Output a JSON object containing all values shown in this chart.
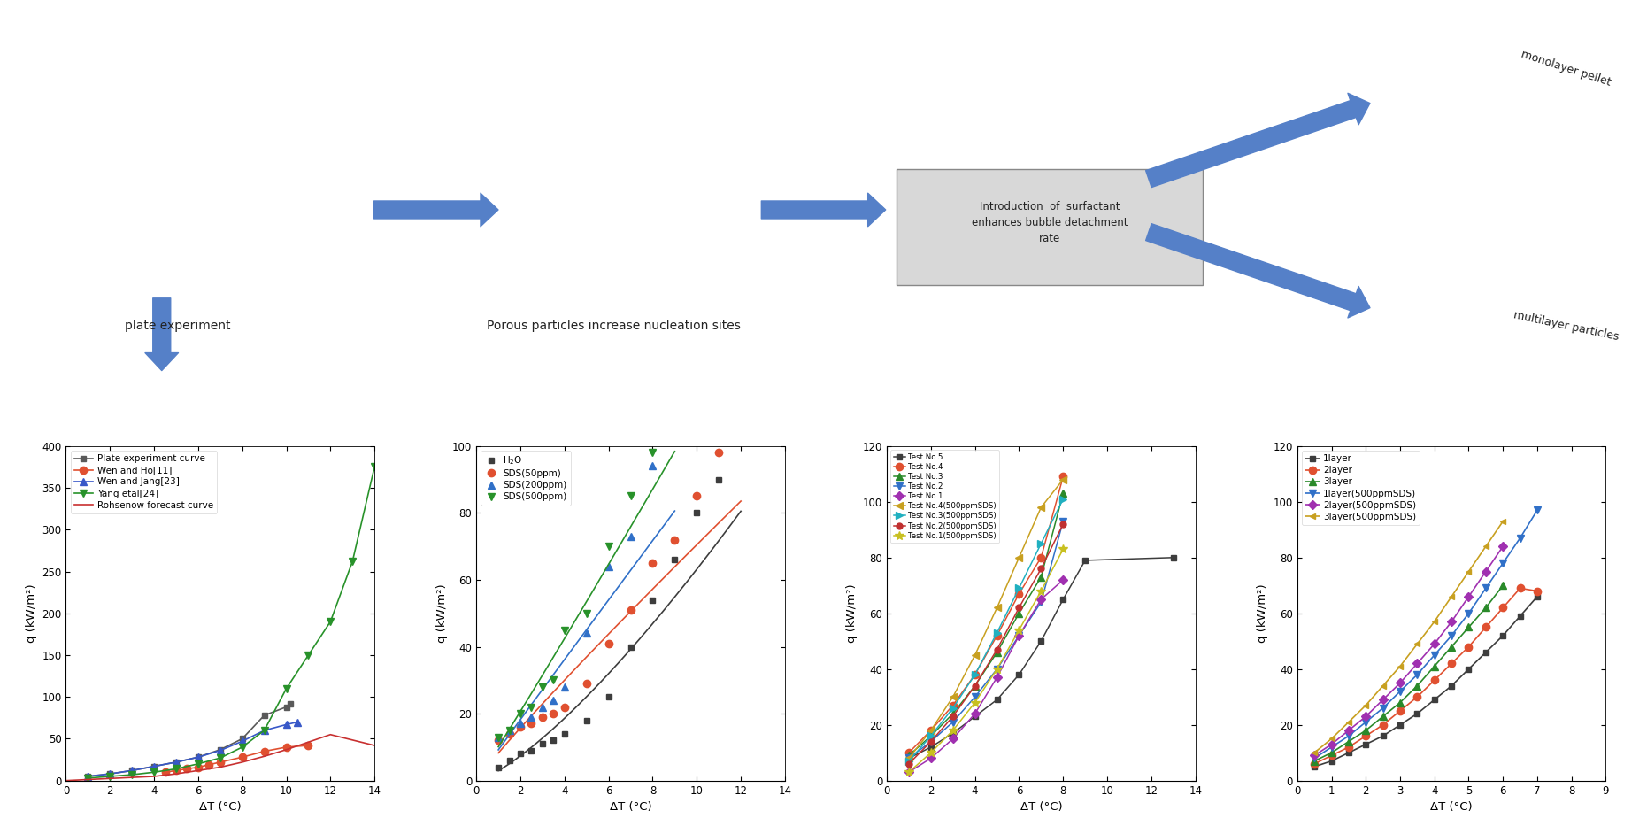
{
  "chart1": {
    "xlabel": "ΔT (°C)",
    "ylabel": "q (kW/m²)",
    "xlim": [
      0,
      14
    ],
    "ylim": [
      0,
      400
    ],
    "xticks": [
      0,
      2,
      4,
      6,
      8,
      10,
      12,
      14
    ],
    "yticks": [
      0,
      50,
      100,
      150,
      200,
      250,
      300,
      350,
      400
    ],
    "series": [
      {
        "label": "Plate experiment curve",
        "color": "#5a5a5a",
        "marker": "s",
        "ms": 5,
        "x": [
          1,
          2,
          3,
          4,
          5,
          6,
          7,
          8,
          9,
          10,
          10.2
        ],
        "y": [
          5,
          8,
          12,
          17,
          22,
          28,
          37,
          50,
          78,
          88,
          92
        ]
      },
      {
        "label": "Wen and Ho[11]",
        "color": "#e05030",
        "marker": "o",
        "ms": 6,
        "x": [
          4.5,
          5,
          5.5,
          6,
          6.5,
          7,
          8,
          9,
          10,
          11
        ],
        "y": [
          10,
          12,
          14,
          16,
          19,
          22,
          28,
          35,
          40,
          42
        ]
      },
      {
        "label": "Wen and Jang[23]",
        "color": "#3858c8",
        "marker": "^",
        "ms": 6,
        "x": [
          1,
          2,
          3,
          4,
          5,
          6,
          7,
          8,
          9,
          10,
          10.5
        ],
        "y": [
          5,
          8,
          12,
          17,
          22,
          28,
          36,
          47,
          60,
          67,
          70
        ]
      },
      {
        "label": "Yang etal[24]",
        "color": "#28922a",
        "marker": "v",
        "ms": 6,
        "x": [
          1,
          2,
          3,
          4,
          5,
          6,
          7,
          8,
          9,
          10,
          11,
          12,
          13,
          14
        ],
        "y": [
          3,
          5,
          7,
          10,
          14,
          20,
          27,
          40,
          60,
          110,
          150,
          190,
          262,
          375
        ]
      },
      {
        "label": "Rohsenow forecast curve",
        "color": "#c83030",
        "marker": null,
        "ms": 0,
        "x": [
          0,
          4,
          5,
          6,
          7,
          8,
          9,
          10,
          11,
          12,
          14
        ],
        "y": [
          0,
          5,
          8,
          12,
          16,
          22,
          29,
          37,
          46,
          55,
          42
        ]
      }
    ]
  },
  "chart2": {
    "xlabel": "ΔT (°C)",
    "ylabel": "q (kW/m²)",
    "xlim": [
      0,
      14
    ],
    "ylim": [
      0,
      100
    ],
    "xticks": [
      0,
      2,
      4,
      6,
      8,
      10,
      12,
      14
    ],
    "yticks": [
      0,
      20,
      40,
      60,
      80,
      100
    ],
    "series": [
      {
        "label": "H$_2$O",
        "color": "#3d3d3d",
        "marker": "s",
        "ms": 5,
        "x": [
          1,
          1.5,
          2,
          2.5,
          3,
          3.5,
          4,
          5,
          6,
          7,
          8,
          9,
          10,
          11,
          12,
          13,
          14
        ],
        "y": [
          4,
          6,
          8,
          9,
          11,
          12,
          14,
          18,
          25,
          40,
          54,
          66,
          80,
          90,
          null,
          null,
          null
        ]
      },
      {
        "label": "SDS(50ppm)",
        "color": "#e05030",
        "marker": "o",
        "ms": 6,
        "x": [
          1,
          1.5,
          2,
          2.5,
          3,
          3.5,
          4,
          5,
          6,
          7,
          8,
          9,
          10,
          11,
          12
        ],
        "y": [
          12,
          14,
          16,
          17,
          19,
          20,
          22,
          29,
          41,
          51,
          65,
          72,
          85,
          98,
          null
        ]
      },
      {
        "label": "SDS(200ppm)",
        "color": "#3070c8",
        "marker": "^",
        "ms": 6,
        "x": [
          1,
          1.5,
          2,
          2.5,
          3,
          3.5,
          4,
          5,
          6,
          7,
          8,
          9,
          10
        ],
        "y": [
          13,
          15,
          17,
          19,
          22,
          24,
          28,
          44,
          64,
          73,
          94,
          null,
          null
        ]
      },
      {
        "label": "SDS(500ppm)",
        "color": "#28922a",
        "marker": "v",
        "ms": 6,
        "x": [
          1,
          1.5,
          2,
          2.5,
          3,
          3.5,
          4,
          5,
          6,
          7,
          8,
          9
        ],
        "y": [
          13,
          15,
          20,
          22,
          28,
          30,
          45,
          50,
          70,
          85,
          98,
          null
        ]
      }
    ]
  },
  "chart3": {
    "xlabel": "ΔT (°C)",
    "ylabel": "q (kW/m²)",
    "xlim": [
      0,
      14
    ],
    "ylim": [
      0,
      120
    ],
    "xticks": [
      0,
      2,
      4,
      6,
      8,
      10,
      12,
      14
    ],
    "yticks": [
      0,
      20,
      40,
      60,
      80,
      100,
      120
    ],
    "series": [
      {
        "label": "Test No.5",
        "color": "#3d3d3d",
        "marker": "s",
        "ms": 5,
        "x": [
          1,
          2,
          3,
          4,
          5,
          6,
          7,
          8,
          9,
          10,
          11,
          12,
          13
        ],
        "y": [
          8,
          12,
          17,
          23,
          29,
          38,
          50,
          65,
          79,
          null,
          null,
          null,
          80
        ]
      },
      {
        "label": "Test No.4",
        "color": "#e05030",
        "marker": "o",
        "ms": 6,
        "x": [
          1,
          2,
          3,
          4,
          5,
          6,
          7,
          8
        ],
        "y": [
          10,
          18,
          27,
          38,
          52,
          67,
          80,
          109
        ]
      },
      {
        "label": "Test No.3",
        "color": "#2a8a2a",
        "marker": "^",
        "ms": 6,
        "x": [
          1,
          2,
          3,
          4,
          5,
          6,
          7,
          8
        ],
        "y": [
          9,
          16,
          24,
          34,
          46,
          60,
          73,
          103
        ]
      },
      {
        "label": "Test No.2",
        "color": "#3070c8",
        "marker": "v",
        "ms": 6,
        "x": [
          1,
          2,
          3,
          4,
          5,
          6,
          7,
          8
        ],
        "y": [
          8,
          14,
          21,
          30,
          40,
          52,
          64,
          93
        ]
      },
      {
        "label": "Test No.1",
        "color": "#a030b0",
        "marker": "D",
        "ms": 5,
        "x": [
          1,
          2,
          3,
          4,
          5,
          6,
          7,
          8
        ],
        "y": [
          3,
          8,
          15,
          24,
          37,
          52,
          65,
          72
        ]
      },
      {
        "label": "Test No.4(500ppmSDS)",
        "color": "#c8a020",
        "marker": "<",
        "ms": 6,
        "x": [
          1,
          2,
          3,
          4,
          5,
          6,
          7,
          8
        ],
        "y": [
          8,
          18,
          30,
          45,
          62,
          80,
          98,
          108
        ]
      },
      {
        "label": "Test No.3(500ppmSDS)",
        "color": "#20b0c0",
        "marker": ">",
        "ms": 6,
        "x": [
          1,
          2,
          3,
          4,
          5,
          6,
          7,
          8
        ],
        "y": [
          7,
          16,
          26,
          38,
          53,
          69,
          85,
          101
        ]
      },
      {
        "label": "Test No.2(500ppmSDS)",
        "color": "#c03030",
        "marker": "o",
        "ms": 5,
        "x": [
          1,
          2,
          3,
          4,
          5,
          6,
          7,
          8
        ],
        "y": [
          6,
          14,
          23,
          34,
          47,
          62,
          76,
          92
        ]
      },
      {
        "label": "Test No.1(500ppmSDS)",
        "color": "#c8c020",
        "marker": "*",
        "ms": 7,
        "x": [
          1,
          2,
          3,
          4,
          5,
          6,
          7,
          8
        ],
        "y": [
          3,
          10,
          18,
          28,
          40,
          54,
          68,
          83
        ]
      }
    ]
  },
  "chart4": {
    "xlabel": "ΔT (°C)",
    "ylabel": "q (kW/m²)",
    "xlim": [
      0,
      9
    ],
    "ylim": [
      0,
      120
    ],
    "xticks": [
      0,
      1,
      2,
      3,
      4,
      5,
      6,
      7,
      8,
      9
    ],
    "yticks": [
      0,
      20,
      40,
      60,
      80,
      100,
      120
    ],
    "series": [
      {
        "label": "1layer",
        "color": "#3d3d3d",
        "marker": "s",
        "ms": 5,
        "x": [
          0.5,
          1,
          1.5,
          2,
          2.5,
          3,
          3.5,
          4,
          4.5,
          5,
          5.5,
          6,
          6.5,
          7,
          7.5,
          8
        ],
        "y": [
          5,
          7,
          10,
          13,
          16,
          20,
          24,
          29,
          34,
          40,
          46,
          52,
          59,
          66,
          null,
          null
        ]
      },
      {
        "label": "2layer",
        "color": "#e05030",
        "marker": "o",
        "ms": 6,
        "x": [
          0.5,
          1,
          1.5,
          2,
          2.5,
          3,
          3.5,
          4,
          4.5,
          5,
          5.5,
          6,
          6.5,
          7,
          7.5,
          8
        ],
        "y": [
          6,
          9,
          12,
          16,
          20,
          25,
          30,
          36,
          42,
          48,
          55,
          62,
          69,
          68,
          null,
          null
        ]
      },
      {
        "label": "3layer",
        "color": "#2a8a2a",
        "marker": "^",
        "ms": 6,
        "x": [
          0.5,
          1,
          1.5,
          2,
          2.5,
          3,
          3.5,
          4,
          4.5,
          5,
          5.5,
          6,
          6.5,
          7,
          7.5,
          8
        ],
        "y": [
          7,
          10,
          14,
          18,
          23,
          28,
          34,
          41,
          48,
          55,
          62,
          70,
          null,
          null,
          null,
          null
        ]
      },
      {
        "label": "1layer(500ppmSDS)",
        "color": "#3070c8",
        "marker": "v",
        "ms": 6,
        "x": [
          0.5,
          1,
          1.5,
          2,
          2.5,
          3,
          3.5,
          4,
          4.5,
          5,
          5.5,
          6,
          6.5,
          7,
          7.5,
          8
        ],
        "y": [
          8,
          12,
          16,
          21,
          26,
          32,
          38,
          45,
          52,
          60,
          69,
          78,
          87,
          97,
          null,
          null
        ]
      },
      {
        "label": "2layer(500ppmSDS)",
        "color": "#a030b0",
        "marker": "D",
        "ms": 5,
        "x": [
          0.5,
          1,
          1.5,
          2,
          2.5,
          3,
          3.5,
          4,
          4.5,
          5,
          5.5,
          6,
          6.5,
          7,
          7.5,
          8
        ],
        "y": [
          9,
          13,
          18,
          23,
          29,
          35,
          42,
          49,
          57,
          66,
          75,
          84,
          null,
          null,
          null,
          null
        ]
      },
      {
        "label": "3layer(500ppmSDS)",
        "color": "#c8a020",
        "marker": "<",
        "ms": 5,
        "x": [
          0.5,
          1,
          1.5,
          2,
          2.5,
          3,
          3.5,
          4,
          4.5,
          5,
          5.5,
          6,
          6.5,
          7,
          7.5,
          8
        ],
        "y": [
          10,
          15,
          21,
          27,
          34,
          41,
          49,
          57,
          66,
          75,
          84,
          93,
          null,
          null,
          null,
          null
        ]
      }
    ]
  },
  "top_labels": {
    "plate_exp": "plate experiment",
    "porous": "Porous particles increase nucleation sites",
    "surfactant": "Introduction  of  surfactant\nenhances bubble detachment\nrate",
    "monolayer": "monolayer pellet",
    "multilayer": "multilayer particles"
  },
  "arrow_color": "#5580c8",
  "outer_border_color": "#555555",
  "bg_color": "#e0e0e0"
}
